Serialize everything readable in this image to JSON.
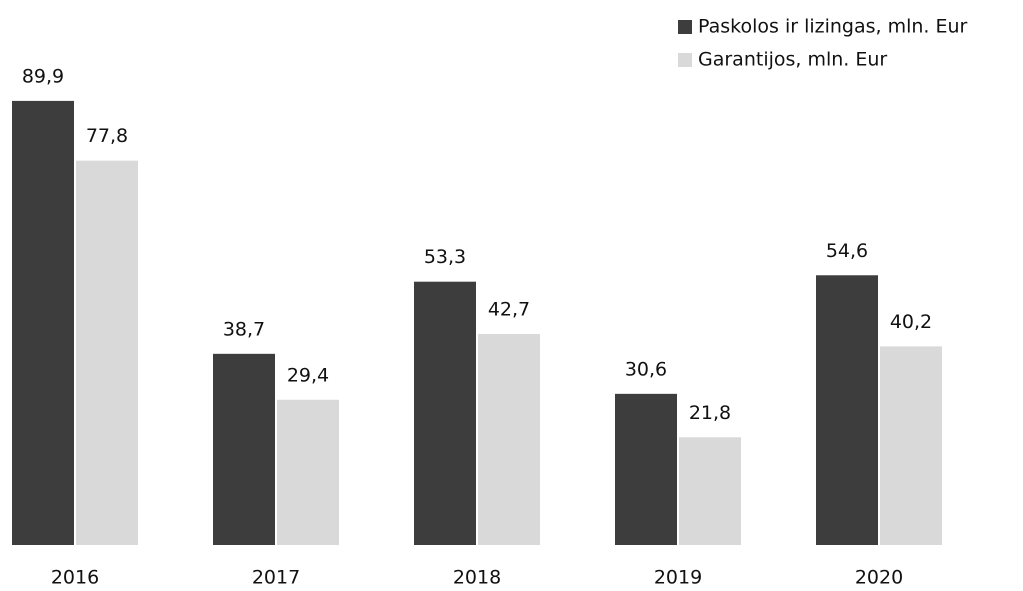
{
  "chart_data": {
    "type": "bar",
    "categories": [
      "2016",
      "2017",
      "2018",
      "2019",
      "2020"
    ],
    "series": [
      {
        "name": "Paskolos ir lizingas, mln. Eur",
        "color": "#3d3d3d",
        "values": [
          89.9,
          38.7,
          53.3,
          30.6,
          54.6
        ],
        "value_labels": [
          "89,9",
          "38,7",
          "53,3",
          "30,6",
          "54,6"
        ]
      },
      {
        "name": "Garantijos, mln. Eur",
        "color": "#d9d9d9",
        "values": [
          77.8,
          29.4,
          42.7,
          21.8,
          40.2
        ],
        "value_labels": [
          "77,8",
          "29,4",
          "42,7",
          "21,8",
          "40,2"
        ]
      }
    ],
    "ylim": [
      0,
      100
    ],
    "legend": "top-right"
  }
}
